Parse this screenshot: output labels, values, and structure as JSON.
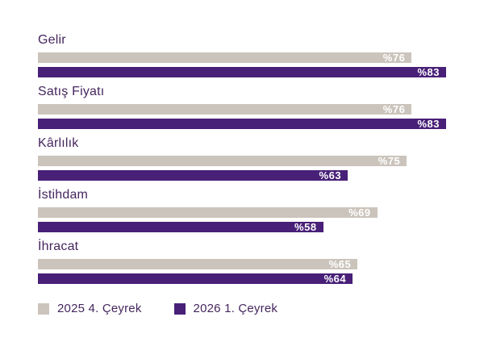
{
  "chart_data": {
    "type": "bar",
    "orientation": "horizontal",
    "categories": [
      "Gelir",
      "Satış Fiyatı",
      "Kârlılık",
      "İstihdam",
      "İhracat"
    ],
    "series": [
      {
        "name": "2025 4. Çeyrek",
        "color": "#CBC4BC",
        "values": [
          76,
          76,
          75,
          69,
          65
        ]
      },
      {
        "name": "2026 1. Çeyrek",
        "color": "#482077",
        "values": [
          83,
          83,
          63,
          58,
          64
        ]
      }
    ],
    "value_prefix": "%",
    "value_labels": [
      [
        "%76",
        "%83"
      ],
      [
        "%76",
        "%83"
      ],
      [
        "%75",
        "%63"
      ],
      [
        "%69",
        "%58"
      ],
      [
        "%65",
        "%64"
      ]
    ],
    "xlim": [
      0,
      83
    ],
    "grid": false,
    "legend_position": "bottom-left"
  },
  "colors": {
    "background": "#FFFFFF",
    "label_text": "#45265E",
    "value_text": "#FFFFFF",
    "series_2025_q4": "#CBC4BC",
    "series_2026_q1": "#482077"
  }
}
